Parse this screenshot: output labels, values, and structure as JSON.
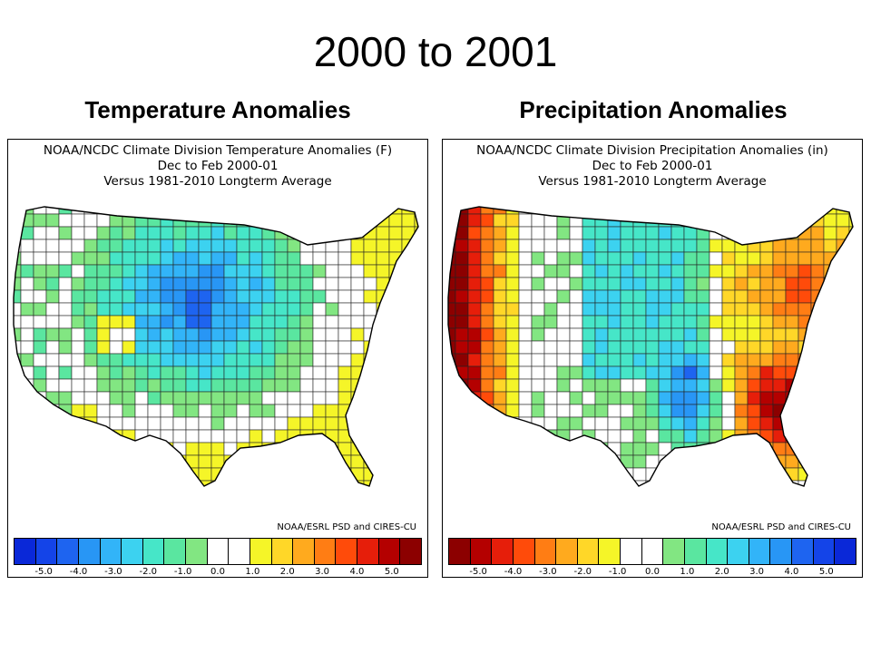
{
  "slide": {
    "title": "2000 to 2001"
  },
  "panels": [
    {
      "heading": "Temperature Anomalies",
      "map_title": [
        "NOAA/NCDC Climate Division Temperature Anomalies (F)",
        "Dec to Feb 2000-01",
        "Versus 1981-2010 Longterm Average"
      ],
      "credit": "NOAA/ESRL PSD and CIRES-CU",
      "colorbar": {
        "colors": [
          "#0a28d8",
          "#1444e8",
          "#1e64f0",
          "#2896f5",
          "#32b4f8",
          "#3cd2f0",
          "#46e6c8",
          "#5ae6a0",
          "#82e682",
          "#ffffff",
          "#ffffff",
          "#f5f528",
          "#ffd728",
          "#ffaa1e",
          "#ff7d14",
          "#ff4b0a",
          "#e61e0a",
          "#b40000",
          "#8c0000"
        ],
        "ticks": [
          "-5.0",
          "-4.0",
          "-3.0",
          "-2.0",
          "-1.0",
          "0.0",
          "1.0",
          "2.0",
          "3.0",
          "4.0",
          "5.0"
        ]
      },
      "pattern": "cold-center"
    },
    {
      "heading": "Precipitation Anomalies",
      "map_title": [
        "NOAA/NCDC Climate Division Precipitation Anomalies (in)",
        "Dec to Feb 2000-01",
        "Versus 1981-2010 Longterm Average"
      ],
      "credit": "NOAA/ESRL PSD and CIRES-CU",
      "colorbar": {
        "colors": [
          "#8c0000",
          "#b40000",
          "#e61e0a",
          "#ff4b0a",
          "#ff7d14",
          "#ffaa1e",
          "#ffd728",
          "#f5f528",
          "#ffffff",
          "#ffffff",
          "#82e682",
          "#5ae6a0",
          "#46e6c8",
          "#3cd2f0",
          "#32b4f8",
          "#2896f5",
          "#1e64f0",
          "#1444e8",
          "#0a28d8"
        ],
        "ticks": [
          "-5.0",
          "-4.0",
          "-3.0",
          "-2.0",
          "-1.0",
          "0.0",
          "1.0",
          "2.0",
          "3.0",
          "4.0",
          "5.0"
        ]
      },
      "pattern": "dry-coasts"
    }
  ]
}
